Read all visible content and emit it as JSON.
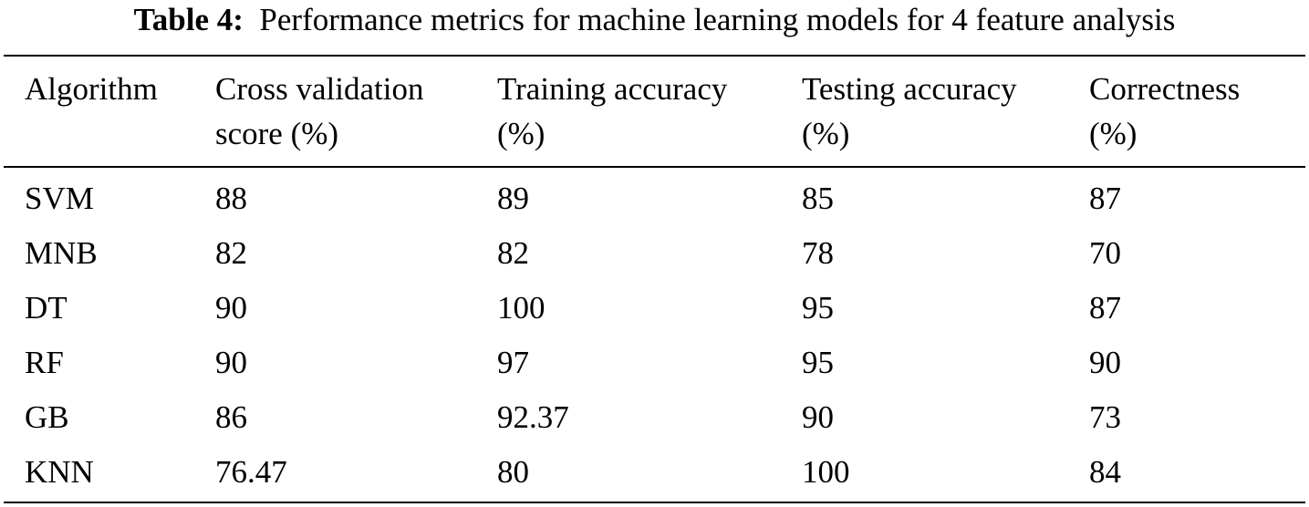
{
  "caption": {
    "label": "Table 4:",
    "text": "Performance metrics for machine learning models for 4 feature analysis"
  },
  "table": {
    "headers": [
      [
        "Algorithm",
        ""
      ],
      [
        "Cross validation",
        "score (%)"
      ],
      [
        "Training accuracy",
        "(%)"
      ],
      [
        "Testing accuracy",
        "(%)"
      ],
      [
        "Correctness",
        "(%)"
      ]
    ],
    "rows": [
      [
        "SVM",
        "88",
        "89",
        "85",
        "87"
      ],
      [
        "MNB",
        "82",
        "82",
        "78",
        "70"
      ],
      [
        "DT",
        "90",
        "100",
        "95",
        "87"
      ],
      [
        "RF",
        "90",
        "97",
        "95",
        "90"
      ],
      [
        "GB",
        "86",
        "92.37",
        "90",
        "73"
      ],
      [
        "KNN",
        "76.47",
        "80",
        "100",
        "84"
      ]
    ]
  }
}
